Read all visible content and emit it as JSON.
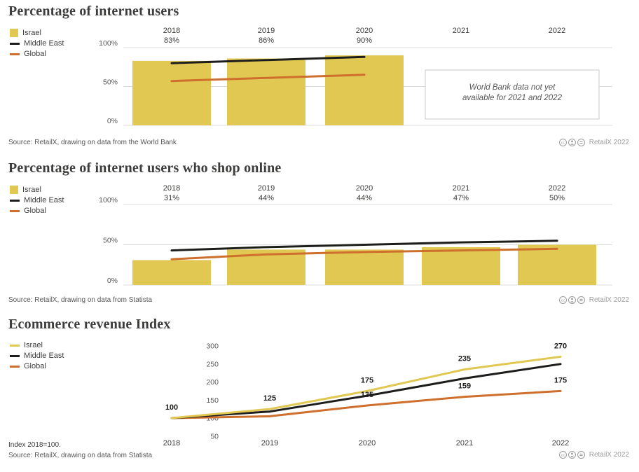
{
  "colors": {
    "israel": "#E0C852",
    "middle_east": "#1D1D1B",
    "global": "#CE6F2D",
    "grid": "#DCDCDC",
    "note_border": "#C8C8C8",
    "title_text": "#3D3D3C",
    "axis_text": "#575756",
    "attribution_text": "#9D9D9C"
  },
  "chart_data": [
    {
      "type": "bar+line",
      "title": "Percentage of internet users",
      "categories": [
        "2018",
        "2019",
        "2020",
        "2021",
        "2022"
      ],
      "header_values": [
        "83%",
        "86%",
        "90%",
        "",
        ""
      ],
      "ylim": [
        0,
        100
      ],
      "yticks": [
        {
          "v": 0,
          "label": "0%"
        },
        {
          "v": 50,
          "label": "50%"
        },
        {
          "v": 100,
          "label": "100%"
        }
      ],
      "series": [
        {
          "name": "Israel",
          "type": "bar",
          "color": "israel",
          "values": [
            83,
            86,
            90,
            null,
            null
          ]
        },
        {
          "name": "Middle East",
          "type": "line",
          "color": "middle_east",
          "values": [
            80,
            84,
            88,
            null,
            null
          ]
        },
        {
          "name": "Global",
          "type": "line",
          "color": "global",
          "values": [
            57,
            61,
            65,
            null,
            null
          ]
        }
      ],
      "legend": [
        "Israel",
        "Middle East",
        "Global"
      ],
      "note_lines": [
        "World Bank data not yet",
        "available for 2021 and 2022"
      ],
      "source": "Source: RetailX, drawing on data from the World Bank",
      "attribution": "RetailX 2022"
    },
    {
      "type": "bar+line",
      "title": "Percentage of internet users who shop online",
      "categories": [
        "2018",
        "2019",
        "2020",
        "2021",
        "2022"
      ],
      "header_values": [
        "31%",
        "44%",
        "44%",
        "47%",
        "50%"
      ],
      "ylim": [
        0,
        100
      ],
      "yticks": [
        {
          "v": 0,
          "label": "0%"
        },
        {
          "v": 50,
          "label": "50%"
        },
        {
          "v": 100,
          "label": "100%"
        }
      ],
      "series": [
        {
          "name": "Israel",
          "type": "bar",
          "color": "israel",
          "values": [
            31,
            44,
            44,
            47,
            50
          ]
        },
        {
          "name": "Middle East",
          "type": "line",
          "color": "middle_east",
          "values": [
            43,
            47,
            50,
            53,
            55
          ]
        },
        {
          "name": "Global",
          "type": "line",
          "color": "global",
          "values": [
            32,
            38,
            41,
            43,
            45
          ]
        }
      ],
      "legend": [
        "Israel",
        "Middle East",
        "Global"
      ],
      "source": "Source: RetailX, drawing on data from Statista",
      "attribution": "RetailX 2022"
    },
    {
      "type": "line",
      "title": "Ecommerce revenue Index",
      "categories": [
        "2018",
        "2019",
        "2020",
        "2021",
        "2022"
      ],
      "ylim": [
        50,
        300
      ],
      "yticks": [
        {
          "v": 50,
          "label": "50"
        },
        {
          "v": 100,
          "label": "100"
        },
        {
          "v": 150,
          "label": "150"
        },
        {
          "v": 200,
          "label": "200"
        },
        {
          "v": 250,
          "label": "250"
        },
        {
          "v": 300,
          "label": "300"
        }
      ],
      "series": [
        {
          "name": "Israel",
          "type": "line",
          "color": "israel",
          "values": [
            100,
            125,
            175,
            235,
            270
          ]
        },
        {
          "name": "Middle East",
          "type": "line",
          "color": "middle_east",
          "values": [
            100,
            118,
            162,
            210,
            250
          ]
        },
        {
          "name": "Global",
          "type": "line",
          "color": "global",
          "values": [
            100,
            105,
            135,
            159,
            175
          ]
        }
      ],
      "point_labels": [
        {
          "series": "Israel",
          "index": 0,
          "text": "100"
        },
        {
          "series": "Israel",
          "index": 1,
          "text": "125"
        },
        {
          "series": "Israel",
          "index": 2,
          "text": "175"
        },
        {
          "series": "Global",
          "index": 2,
          "text": "135"
        },
        {
          "series": "Israel",
          "index": 3,
          "text": "235"
        },
        {
          "series": "Global",
          "index": 3,
          "text": "159"
        },
        {
          "series": "Israel",
          "index": 4,
          "text": "270"
        },
        {
          "series": "Global",
          "index": 4,
          "text": "175"
        }
      ],
      "legend": [
        "Israel",
        "Middle East",
        "Global"
      ],
      "index_note": "Index 2018=100.",
      "source": "Source: RetailX, drawing on data from Statista",
      "attribution": "RetailX 2022"
    }
  ]
}
